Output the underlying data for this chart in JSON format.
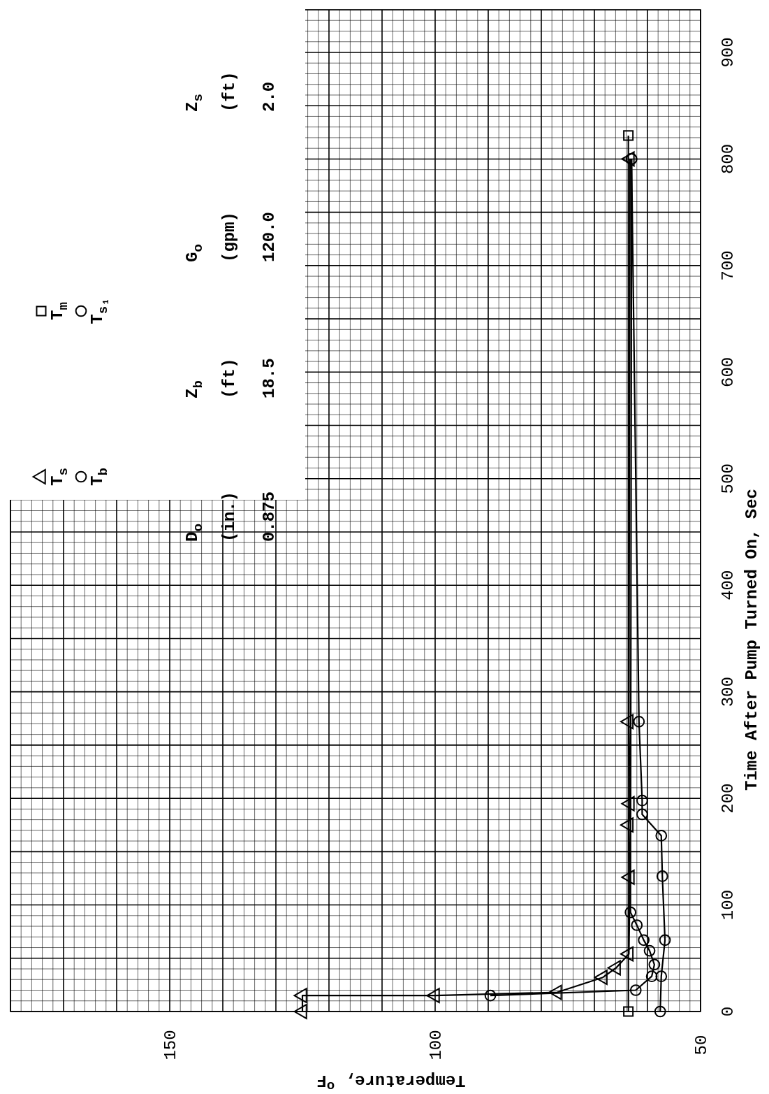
{
  "chart_data": {
    "type": "line",
    "ylabel": "Time After Pump Turned On, Sec",
    "xlabel": "Temperature, $^{o}$F",
    "ylim": [
      0,
      940
    ],
    "yticks": [
      0,
      100,
      200,
      300,
      400,
      500,
      600,
      700,
      800,
      900
    ],
    "xlim": [
      180,
      50
    ],
    "xticks": [
      150,
      100,
      50
    ],
    "grid": true,
    "legend": "top left",
    "series": [
      {
        "name": "T$_{s}$",
        "color": "#000000",
        "marker": "triangle",
        "values": [
          0,
          15,
          15,
          18,
          32,
          41,
          54,
          126,
          175,
          195,
          272,
          800
        ],
        "x": [
          125,
          125,
          100,
          77,
          68.4,
          65.9,
          63.5,
          63.3,
          63.5,
          63.3,
          63.5,
          63.3
        ]
      },
      {
        "name": "T$_{b}$",
        "color": "#000000",
        "marker": "circle",
        "values": [
          0,
          33,
          67,
          127,
          165,
          185,
          198,
          272,
          800
        ],
        "x": [
          57.6,
          57.4,
          56.7,
          57.2,
          57.4,
          61,
          61,
          61.6,
          63
        ]
      },
      {
        "name": "T$_{m}$",
        "color": "#000000",
        "marker": "square",
        "values": [
          0,
          822
        ],
        "x": [
          63.6,
          63.6
        ]
      },
      {
        "name": "T$_{s₁}$",
        "color": "#000000",
        "marker": "circle",
        "values": [
          15,
          20,
          33,
          44,
          57,
          67,
          81,
          93,
          800
        ],
        "x": [
          89.6,
          62.2,
          59.2,
          58.7,
          59.6,
          60.7,
          62,
          63.2,
          63
        ]
      }
    ],
    "annotations": [
      "D$_{o}$",
      "(in.)",
      "0.875",
      "Z$_{b}$",
      "(ft)",
      "18.5",
      "G$_{o}$",
      "(gpm)",
      "120.0",
      "Z$_{s}$",
      "(ft)",
      "2.0"
    ]
  }
}
